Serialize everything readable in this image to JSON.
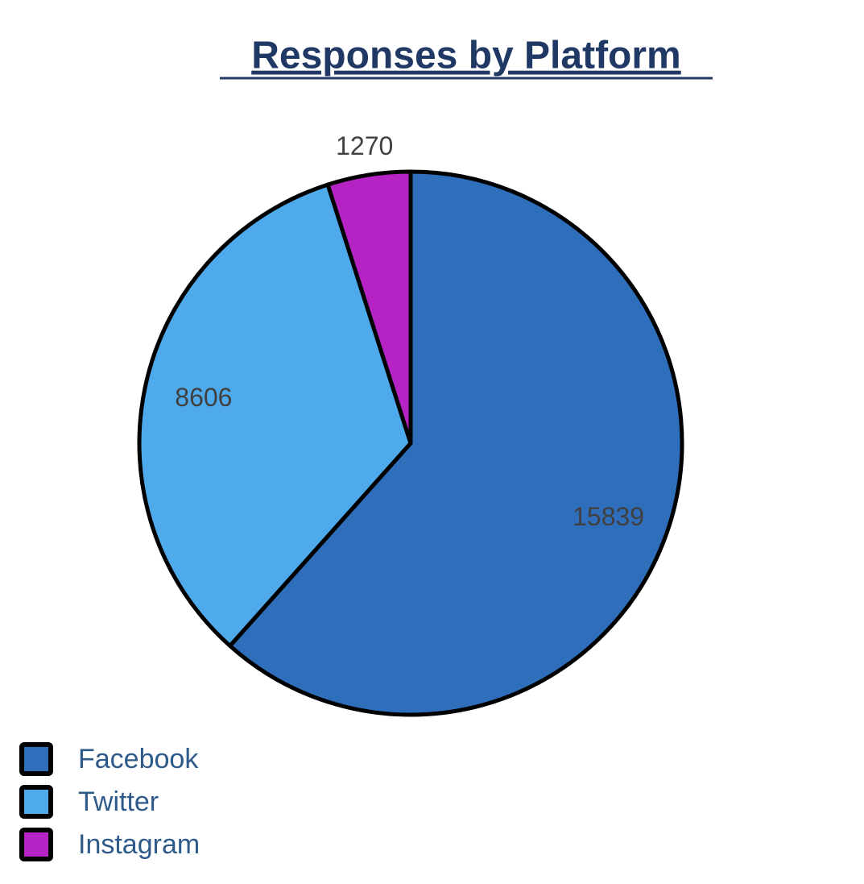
{
  "chart_data": {
    "type": "pie",
    "title": "Responses by Platform",
    "categories": [
      "Facebook",
      "Twitter",
      "Instagram"
    ],
    "values": [
      15839,
      8606,
      1270
    ],
    "colors": [
      "#2f6ebb",
      "#4eaaea",
      "#b523c4"
    ],
    "legend": "bottom-left"
  }
}
